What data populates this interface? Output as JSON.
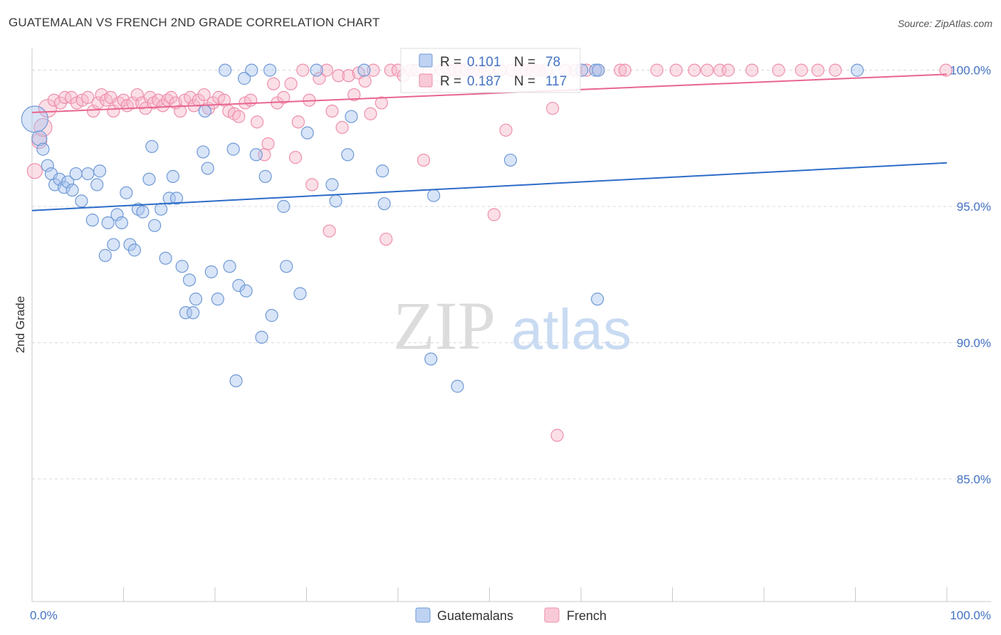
{
  "title": "GUATEMALAN VS FRENCH 2ND GRADE CORRELATION CHART",
  "source": "Source: ZipAtlas.com",
  "watermark": {
    "zip": "ZIP",
    "atlas": "atlas"
  },
  "legend": {
    "r_label": "R =",
    "n_label": "N =",
    "rows": [
      {
        "r": "0.101",
        "n": "78"
      },
      {
        "r": "0.187",
        "n": "117"
      }
    ]
  },
  "colors": {
    "guatemalan_fill": "#a8c4ee",
    "guatemalan_stroke": "#6f9ad6",
    "guatemalan_line": "#2d6cc8",
    "french_fill": "#f6b8ca",
    "french_stroke": "#ee8fab",
    "french_line": "#e8658f",
    "tick_text": "#4472c4",
    "grid": "#d8d8d8"
  },
  "chart_data": {
    "type": "scatter",
    "title": "GUATEMALAN VS FRENCH 2ND GRADE CORRELATION CHART",
    "xlabel": "",
    "ylabel": "2nd Grade",
    "xlim": [
      0,
      100
    ],
    "ylim": [
      80.5,
      100.8
    ],
    "y_ticks": [
      {
        "value": 100,
        "label": "100.0%"
      },
      {
        "value": 95,
        "label": "95.0%"
      },
      {
        "value": 90,
        "label": "90.0%"
      },
      {
        "value": 85,
        "label": "85.0%"
      }
    ],
    "x_ticks": [
      {
        "value": 0,
        "label": "0.0%"
      },
      {
        "value": 100,
        "label": "100.0%"
      }
    ],
    "grid": true,
    "legend_position": "top-center",
    "series": [
      {
        "name": "Guatemalans",
        "r": 0.101,
        "n": 78,
        "trend": {
          "x": [
            0,
            100
          ],
          "y": [
            94.85,
            96.6
          ]
        },
        "points": [
          [
            0.3,
            98.2
          ],
          [
            0.8,
            97.5
          ],
          [
            1.2,
            97.1
          ],
          [
            1.7,
            96.5
          ],
          [
            2.1,
            96.2
          ],
          [
            2.5,
            95.8
          ],
          [
            3.0,
            96.0
          ],
          [
            3.5,
            95.7
          ],
          [
            3.9,
            95.9
          ],
          [
            4.4,
            95.6
          ],
          [
            4.8,
            96.2
          ],
          [
            5.4,
            95.2
          ],
          [
            6.1,
            96.2
          ],
          [
            6.6,
            94.5
          ],
          [
            7.1,
            95.8
          ],
          [
            7.4,
            96.3
          ],
          [
            8.0,
            93.2
          ],
          [
            8.3,
            94.4
          ],
          [
            8.9,
            93.6
          ],
          [
            9.3,
            94.7
          ],
          [
            9.8,
            94.4
          ],
          [
            10.3,
            95.5
          ],
          [
            10.7,
            93.6
          ],
          [
            11.2,
            93.4
          ],
          [
            11.6,
            94.9
          ],
          [
            12.1,
            94.8
          ],
          [
            12.8,
            96.0
          ],
          [
            13.1,
            97.2
          ],
          [
            13.4,
            94.3
          ],
          [
            14.1,
            94.9
          ],
          [
            14.6,
            93.1
          ],
          [
            15.0,
            95.3
          ],
          [
            15.4,
            96.1
          ],
          [
            15.8,
            95.3
          ],
          [
            16.4,
            92.8
          ],
          [
            16.8,
            91.1
          ],
          [
            17.2,
            92.3
          ],
          [
            17.6,
            91.1
          ],
          [
            17.9,
            91.6
          ],
          [
            18.7,
            97.0
          ],
          [
            18.9,
            98.5
          ],
          [
            19.2,
            96.4
          ],
          [
            19.6,
            92.6
          ],
          [
            20.3,
            91.6
          ],
          [
            21.1,
            100.0
          ],
          [
            21.6,
            92.8
          ],
          [
            22.0,
            97.1
          ],
          [
            22.3,
            88.6
          ],
          [
            22.6,
            92.1
          ],
          [
            23.2,
            99.7
          ],
          [
            23.4,
            91.9
          ],
          [
            24.0,
            100.0
          ],
          [
            24.5,
            96.9
          ],
          [
            25.1,
            90.2
          ],
          [
            25.5,
            96.1
          ],
          [
            26.0,
            100.0
          ],
          [
            26.2,
            91.0
          ],
          [
            27.5,
            95.0
          ],
          [
            27.8,
            92.8
          ],
          [
            29.3,
            91.8
          ],
          [
            30.1,
            97.7
          ],
          [
            31.1,
            100.0
          ],
          [
            32.8,
            95.8
          ],
          [
            33.2,
            95.2
          ],
          [
            34.5,
            96.9
          ],
          [
            34.9,
            98.3
          ],
          [
            36.3,
            100.0
          ],
          [
            38.3,
            96.3
          ],
          [
            38.5,
            95.1
          ],
          [
            43.6,
            89.4
          ],
          [
            43.9,
            95.4
          ],
          [
            46.5,
            88.4
          ],
          [
            52.3,
            96.7
          ],
          [
            60.1,
            100.0
          ],
          [
            61.6,
            100.0
          ],
          [
            61.9,
            100.0
          ],
          [
            61.8,
            91.6
          ],
          [
            90.2,
            100.0
          ]
        ],
        "radius": [
          20,
          12,
          10,
          10,
          10,
          10,
          10,
          10,
          10,
          10,
          10,
          10,
          10,
          10,
          10,
          10,
          10,
          10,
          10,
          10,
          10,
          10,
          10,
          10,
          10,
          10,
          10,
          10,
          10,
          10,
          10,
          10,
          10,
          10,
          10,
          10,
          10,
          10,
          10,
          10,
          10,
          10,
          10,
          10,
          10,
          10,
          10,
          10,
          10,
          10,
          10,
          10,
          10,
          10,
          10,
          10,
          10,
          10,
          10,
          10,
          10,
          10,
          10,
          10,
          10,
          10,
          10,
          10,
          10,
          10,
          10,
          10,
          10,
          10,
          10,
          10,
          10,
          10
        ]
      },
      {
        "name": "French",
        "r": 0.187,
        "n": 117,
        "trend": {
          "x": [
            0,
            100
          ],
          "y": [
            98.45,
            99.85
          ]
        },
        "points": [
          [
            0.3,
            96.3
          ],
          [
            0.8,
            97.4
          ],
          [
            1.2,
            97.9
          ],
          [
            1.7,
            98.6
          ],
          [
            2.4,
            98.9
          ],
          [
            3.1,
            98.8
          ],
          [
            3.6,
            99.0
          ],
          [
            4.3,
            99.0
          ],
          [
            4.9,
            98.8
          ],
          [
            5.5,
            98.9
          ],
          [
            6.1,
            99.0
          ],
          [
            6.7,
            98.5
          ],
          [
            7.2,
            98.8
          ],
          [
            7.6,
            99.1
          ],
          [
            8.1,
            98.9
          ],
          [
            8.6,
            99.0
          ],
          [
            8.9,
            98.5
          ],
          [
            9.5,
            98.8
          ],
          [
            10.0,
            98.9
          ],
          [
            10.4,
            98.7
          ],
          [
            11.0,
            98.8
          ],
          [
            11.5,
            99.1
          ],
          [
            12.0,
            98.8
          ],
          [
            12.4,
            98.6
          ],
          [
            12.9,
            99.0
          ],
          [
            13.3,
            98.8
          ],
          [
            13.8,
            98.9
          ],
          [
            14.3,
            98.7
          ],
          [
            14.8,
            98.9
          ],
          [
            15.2,
            99.0
          ],
          [
            15.7,
            98.8
          ],
          [
            16.2,
            98.5
          ],
          [
            16.7,
            98.9
          ],
          [
            17.3,
            99.0
          ],
          [
            17.7,
            98.7
          ],
          [
            18.2,
            98.9
          ],
          [
            18.8,
            99.1
          ],
          [
            19.3,
            98.6
          ],
          [
            19.8,
            98.8
          ],
          [
            20.4,
            99.0
          ],
          [
            21.0,
            98.9
          ],
          [
            21.5,
            98.5
          ],
          [
            22.1,
            98.4
          ],
          [
            22.6,
            98.3
          ],
          [
            23.3,
            98.8
          ],
          [
            23.9,
            98.9
          ],
          [
            24.6,
            98.1
          ],
          [
            25.4,
            96.9
          ],
          [
            25.8,
            97.3
          ],
          [
            26.4,
            99.5
          ],
          [
            26.8,
            98.8
          ],
          [
            27.5,
            99.0
          ],
          [
            28.3,
            99.5
          ],
          [
            28.8,
            96.8
          ],
          [
            29.1,
            98.1
          ],
          [
            29.6,
            100.0
          ],
          [
            30.3,
            98.9
          ],
          [
            30.6,
            95.8
          ],
          [
            31.4,
            99.7
          ],
          [
            32.2,
            100.0
          ],
          [
            32.5,
            94.1
          ],
          [
            32.8,
            98.5
          ],
          [
            33.5,
            99.8
          ],
          [
            33.9,
            97.9
          ],
          [
            34.6,
            99.8
          ],
          [
            35.2,
            99.1
          ],
          [
            35.7,
            99.9
          ],
          [
            36.4,
            99.6
          ],
          [
            37.0,
            98.4
          ],
          [
            37.3,
            100.0
          ],
          [
            38.2,
            98.8
          ],
          [
            38.7,
            93.8
          ],
          [
            39.2,
            100.0
          ],
          [
            40.0,
            100.0
          ],
          [
            40.6,
            99.8
          ],
          [
            41.4,
            100.0
          ],
          [
            42.1,
            100.0
          ],
          [
            42.8,
            96.7
          ],
          [
            43.4,
            100.0
          ],
          [
            44.1,
            99.4
          ],
          [
            44.8,
            100.0
          ],
          [
            45.5,
            100.0
          ],
          [
            46.2,
            100.0
          ],
          [
            46.8,
            100.0
          ],
          [
            47.5,
            100.0
          ],
          [
            48.3,
            100.0
          ],
          [
            49.0,
            100.0
          ],
          [
            49.8,
            100.0
          ],
          [
            50.5,
            94.7
          ],
          [
            51.2,
            100.0
          ],
          [
            51.8,
            97.8
          ],
          [
            52.5,
            100.0
          ],
          [
            53.3,
            100.0
          ],
          [
            54.0,
            100.0
          ],
          [
            54.7,
            100.0
          ],
          [
            55.4,
            100.0
          ],
          [
            56.2,
            100.0
          ],
          [
            56.9,
            98.6
          ],
          [
            57.4,
            86.6
          ],
          [
            58.3,
            100.0
          ],
          [
            59.4,
            100.0
          ],
          [
            60.6,
            100.0
          ],
          [
            61.9,
            100.0
          ],
          [
            64.3,
            100.0
          ],
          [
            64.8,
            100.0
          ],
          [
            68.3,
            100.0
          ],
          [
            70.4,
            100.0
          ],
          [
            72.4,
            100.0
          ],
          [
            73.8,
            100.0
          ],
          [
            75.2,
            100.0
          ],
          [
            76.1,
            100.0
          ],
          [
            78.7,
            100.0
          ],
          [
            81.6,
            100.0
          ],
          [
            84.1,
            100.0
          ],
          [
            85.9,
            100.0
          ],
          [
            87.8,
            100.0
          ],
          [
            99.9,
            100.0
          ]
        ],
        "radius": [
          12,
          12,
          14,
          14,
          10,
          10,
          10,
          10,
          10,
          10,
          10,
          10,
          10,
          10,
          10,
          10,
          10,
          10,
          10,
          10,
          10,
          10,
          10,
          10,
          10,
          10,
          10,
          10,
          10,
          10,
          10,
          10,
          10,
          10,
          10,
          10,
          10,
          10,
          10,
          10,
          10,
          10,
          10,
          10,
          10,
          10,
          10,
          10,
          10,
          10,
          10,
          10,
          10,
          10,
          10,
          10,
          10,
          10,
          10,
          10,
          10,
          10,
          10,
          10,
          10,
          10,
          10,
          10,
          10,
          10,
          10,
          10,
          10,
          10,
          10,
          10,
          10,
          10,
          10,
          10,
          10,
          10,
          10,
          10,
          10,
          10,
          10,
          10,
          10,
          10,
          10,
          10,
          10,
          10,
          10,
          10,
          10,
          10,
          10,
          10,
          10,
          10,
          10,
          10,
          10,
          10,
          10,
          10,
          10,
          10,
          10,
          10,
          10,
          10,
          10,
          10,
          10
        ]
      }
    ]
  }
}
